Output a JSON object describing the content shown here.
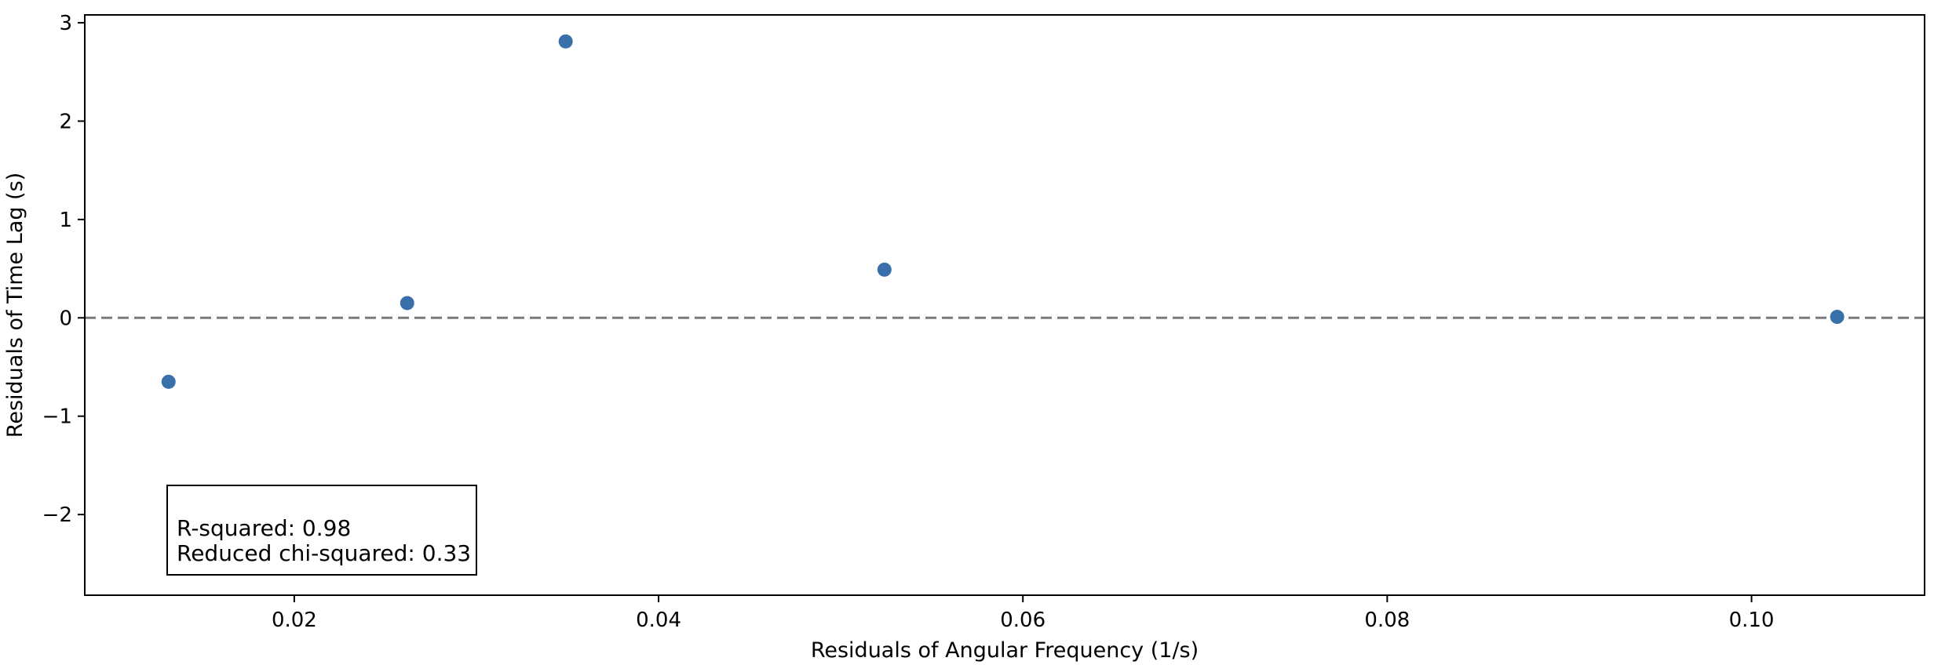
{
  "chart_data": {
    "type": "scatter",
    "title": "",
    "xlabel": "Residuals of Angular Frequency (1/s)",
    "ylabel": "Residuals of Time Lag (s)",
    "xlim": [
      0.0085,
      0.1095
    ],
    "ylim": [
      -2.82,
      3.08
    ],
    "x_ticks": [
      0.02,
      0.04,
      0.06,
      0.08,
      0.1
    ],
    "x_tick_labels": [
      "0.02",
      "0.04",
      "0.06",
      "0.08",
      "0.10"
    ],
    "y_ticks": [
      -2,
      -1,
      0,
      1,
      2,
      3
    ],
    "y_tick_labels": [
      "−2",
      "−1",
      "0",
      "1",
      "2",
      "3"
    ],
    "grid": false,
    "reference_line": {
      "y": 0,
      "style": "dashed",
      "color": "#7a7a7a"
    },
    "series": [
      {
        "color": "#3a70aa",
        "points": [
          {
            "x": 0.0131,
            "y": -0.65
          },
          {
            "x": 0.0262,
            "y": 0.15
          },
          {
            "x": 0.0349,
            "y": 2.81
          },
          {
            "x": 0.0524,
            "y": 0.49
          },
          {
            "x": 0.1047,
            "y": 0.01
          }
        ]
      }
    ],
    "annotation": {
      "lines": [
        "R-squared: 0.98",
        "Reduced chi-squared: 0.33"
      ],
      "placement": "bottom-left"
    }
  }
}
